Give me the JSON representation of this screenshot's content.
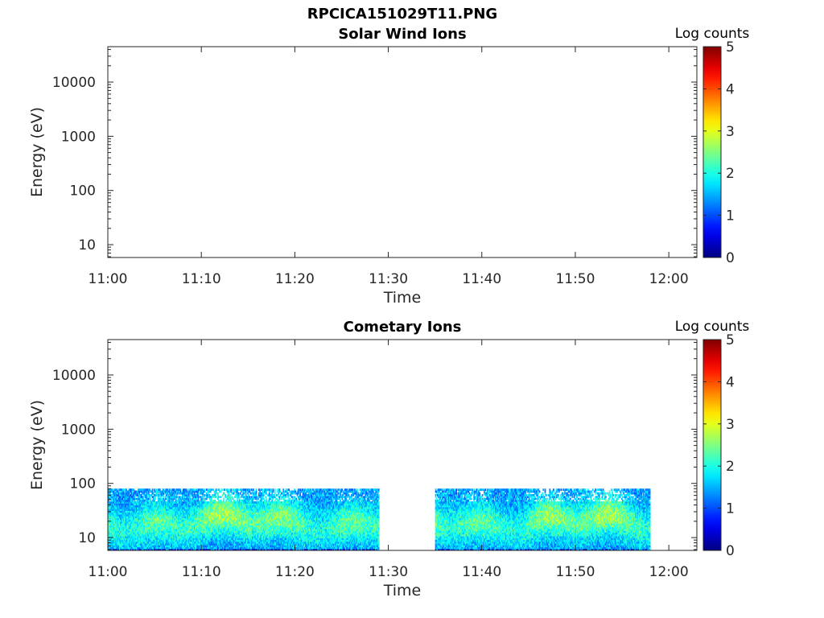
{
  "figure": {
    "title": "RPCICA151029T11.PNG"
  },
  "chart_data": [
    {
      "type": "heatmap",
      "title": "Solar Wind Ions",
      "xlabel": "Time",
      "ylabel": "Energy (eV)",
      "x_range": [
        "11:00",
        "12:03"
      ],
      "x_ticks": [
        "11:00",
        "11:10",
        "11:20",
        "11:30",
        "11:40",
        "11:50",
        "12:00"
      ],
      "y_scale": "log",
      "y_range": [
        5.8,
        45000
      ],
      "y_ticks": [
        10,
        100,
        1000,
        10000
      ],
      "y_tick_labels": [
        "10",
        "100",
        "1000",
        "10000"
      ],
      "colorbar": {
        "label": "Log counts",
        "range": [
          0,
          5
        ],
        "ticks": [
          "0",
          "1",
          "2",
          "3",
          "4",
          "5"
        ],
        "colormap": "jet"
      },
      "data_segments": []
    },
    {
      "type": "heatmap",
      "title": "Cometary Ions",
      "xlabel": "Time",
      "ylabel": "Energy (eV)",
      "x_range": [
        "11:00",
        "12:03"
      ],
      "x_ticks": [
        "11:00",
        "11:10",
        "11:20",
        "11:30",
        "11:40",
        "11:50",
        "12:00"
      ],
      "y_scale": "log",
      "y_range": [
        5.8,
        45000
      ],
      "y_ticks": [
        10,
        100,
        1000,
        10000
      ],
      "y_tick_labels": [
        "10",
        "100",
        "1000",
        "10000"
      ],
      "colorbar": {
        "label": "Log counts",
        "range": [
          0,
          5
        ],
        "ticks": [
          "0",
          "1",
          "2",
          "3",
          "4",
          "5"
        ],
        "colormap": "jet"
      },
      "data_segments": [
        {
          "start": "11:00",
          "end": "11:29",
          "energy_range": [
            5.8,
            80
          ],
          "typical_log_counts": [
            0.5,
            3
          ]
        },
        {
          "start": "11:35",
          "end": "11:58",
          "energy_range": [
            5.8,
            80
          ],
          "typical_log_counts": [
            0.5,
            3
          ]
        }
      ]
    }
  ]
}
